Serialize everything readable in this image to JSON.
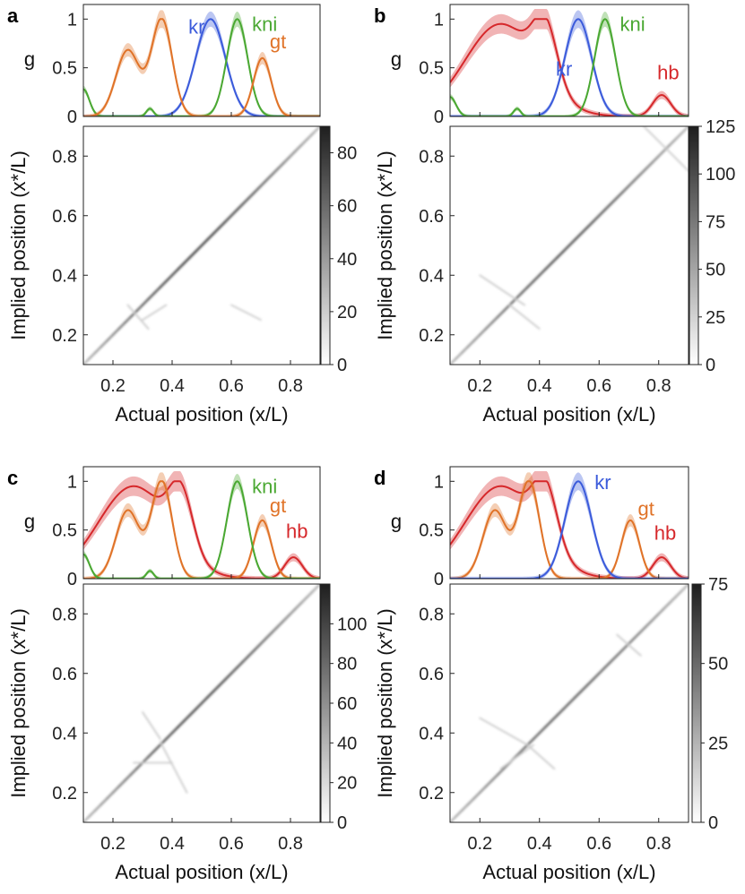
{
  "figure": {
    "colors": {
      "kr": "#3b5bdb",
      "kni": "#4aa832",
      "gt": "#e07328",
      "hb": "#d6282b"
    },
    "x_range": [
      0.1,
      0.9
    ]
  },
  "chart_data": [
    {
      "panel_label": "a",
      "genes": [
        {
          "name": "kr",
          "color": "#3b5bdb",
          "centers": [
            0.53
          ],
          "widths": [
            0.05
          ],
          "amps": [
            1.0
          ],
          "band": 0.06,
          "label_x": 0.455,
          "label_y": 0.85
        },
        {
          "name": "kni",
          "color": "#4aa832",
          "centers": [
            0.62,
            0.325,
            0.1
          ],
          "widths": [
            0.035,
            0.012,
            0.02
          ],
          "amps": [
            1.0,
            0.08,
            0.28
          ],
          "band": 0.06,
          "label_x": 0.67,
          "label_y": 0.88
        },
        {
          "name": "gt",
          "color": "#e07328",
          "centers": [
            0.25,
            0.365,
            0.705
          ],
          "widths": [
            0.04,
            0.035,
            0.03
          ],
          "amps": [
            0.68,
            1.0,
            0.6
          ],
          "band": 0.07,
          "label_x": 0.73,
          "label_y": 0.7
        }
      ],
      "top_plot": {
        "type": "line",
        "ylabel": "g",
        "yticks": [
          "0",
          "0.5",
          "1"
        ],
        "ylim": [
          0,
          1.15
        ],
        "xlim": [
          0.1,
          0.9
        ]
      },
      "heatmap": {
        "type": "heatmap",
        "xlabel": "Actual position (x/L)",
        "ylabel": "Implied position (x*/L)",
        "xticks": [
          "0.2",
          "0.4",
          "0.6",
          "0.8"
        ],
        "yticks": [
          "0.2",
          "0.4",
          "0.6",
          "0.8"
        ],
        "xlim": [
          0.1,
          0.9
        ],
        "ylim": [
          0.1,
          0.9
        ],
        "colorbar_max": 90,
        "colorbar_ticks": [
          "0",
          "20",
          "40",
          "60",
          "80"
        ],
        "peak": 80,
        "branches": [
          [
            0.25,
            0.3,
            0.32,
            0.22
          ],
          [
            0.3,
            0.25,
            0.38,
            0.3
          ],
          [
            0.6,
            0.3,
            0.7,
            0.25
          ]
        ]
      }
    },
    {
      "panel_label": "b",
      "genes": [
        {
          "name": "hb",
          "color": "#d6282b",
          "centers": [
            0.27,
            0.42,
            0.81
          ],
          "widths": [
            0.12,
            0.04,
            0.03
          ],
          "amps": [
            0.95,
            0.6,
            0.22
          ],
          "band": 0.08,
          "label_x": 0.795,
          "label_y": 0.38
        },
        {
          "name": "kr",
          "color": "#3b5bdb",
          "centers": [
            0.53
          ],
          "widths": [
            0.045
          ],
          "amps": [
            1.0
          ],
          "band": 0.07,
          "label_x": 0.455,
          "label_y": 0.42
        },
        {
          "name": "kni",
          "color": "#4aa832",
          "centers": [
            0.62,
            0.325,
            0.1
          ],
          "widths": [
            0.035,
            0.012,
            0.02
          ],
          "amps": [
            1.0,
            0.08,
            0.2
          ],
          "band": 0.06,
          "label_x": 0.67,
          "label_y": 0.88
        }
      ],
      "top_plot": {
        "type": "line",
        "ylabel": "g",
        "yticks": [
          "0",
          "0.5",
          "1"
        ],
        "ylim": [
          0,
          1.15
        ],
        "xlim": [
          0.1,
          0.9
        ]
      },
      "heatmap": {
        "type": "heatmap",
        "xlabel": "Actual position (x/L)",
        "ylabel": "Implied position (x*/L)",
        "xticks": [
          "0.2",
          "0.4",
          "0.6",
          "0.8"
        ],
        "yticks": [
          "0.2",
          "0.4",
          "0.6",
          "0.8"
        ],
        "xlim": [
          0.1,
          0.9
        ],
        "ylim": [
          0.1,
          0.9
        ],
        "colorbar_max": 125,
        "colorbar_ticks": [
          "0",
          "25",
          "50",
          "75",
          "100",
          "125"
        ],
        "peak": 70,
        "branches": [
          [
            0.2,
            0.4,
            0.35,
            0.3
          ],
          [
            0.3,
            0.3,
            0.4,
            0.22
          ],
          [
            0.75,
            0.9,
            0.9,
            0.75
          ]
        ]
      }
    },
    {
      "panel_label": "c",
      "genes": [
        {
          "name": "hb",
          "color": "#d6282b",
          "centers": [
            0.27,
            0.43,
            0.81
          ],
          "widths": [
            0.12,
            0.04,
            0.03
          ],
          "amps": [
            0.95,
            0.6,
            0.22
          ],
          "band": 0.08,
          "label_x": 0.785,
          "label_y": 0.42
        },
        {
          "name": "gt",
          "color": "#e07328",
          "centers": [
            0.25,
            0.365,
            0.705
          ],
          "widths": [
            0.04,
            0.035,
            0.03
          ],
          "amps": [
            0.7,
            1.0,
            0.6
          ],
          "band": 0.07,
          "label_x": 0.73,
          "label_y": 0.68
        },
        {
          "name": "kni",
          "color": "#4aa832",
          "centers": [
            0.62,
            0.325,
            0.1
          ],
          "widths": [
            0.035,
            0.012,
            0.02
          ],
          "amps": [
            1.0,
            0.08,
            0.25
          ],
          "band": 0.06,
          "label_x": 0.67,
          "label_y": 0.88
        }
      ],
      "top_plot": {
        "type": "line",
        "ylabel": "g",
        "yticks": [
          "0",
          "0.5",
          "1"
        ],
        "ylim": [
          0,
          1.15
        ],
        "xlim": [
          0.1,
          0.9
        ]
      },
      "heatmap": {
        "type": "heatmap",
        "xlabel": "Actual position (x/L)",
        "ylabel": "Implied position (x*/L)",
        "xticks": [
          "0.2",
          "0.4",
          "0.6",
          "0.8"
        ],
        "yticks": [
          "0.2",
          "0.4",
          "0.6",
          "0.8"
        ],
        "xlim": [
          0.1,
          0.9
        ],
        "ylim": [
          0.1,
          0.9
        ],
        "colorbar_max": 120,
        "colorbar_ticks": [
          "0",
          "20",
          "40",
          "60",
          "80",
          "100"
        ],
        "peak": 75,
        "branches": [
          [
            0.3,
            0.47,
            0.36,
            0.38
          ],
          [
            0.36,
            0.37,
            0.45,
            0.2
          ],
          [
            0.27,
            0.3,
            0.4,
            0.3
          ]
        ]
      }
    },
    {
      "panel_label": "d",
      "genes": [
        {
          "name": "hb",
          "color": "#d6282b",
          "centers": [
            0.27,
            0.42,
            0.81
          ],
          "widths": [
            0.12,
            0.04,
            0.03
          ],
          "amps": [
            0.95,
            0.6,
            0.22
          ],
          "band": 0.08,
          "label_x": 0.785,
          "label_y": 0.4
        },
        {
          "name": "gt",
          "color": "#e07328",
          "centers": [
            0.25,
            0.365,
            0.705
          ],
          "widths": [
            0.04,
            0.035,
            0.03
          ],
          "amps": [
            0.7,
            1.0,
            0.6
          ],
          "band": 0.07,
          "label_x": 0.73,
          "label_y": 0.65
        },
        {
          "name": "kr",
          "color": "#3b5bdb",
          "centers": [
            0.53
          ],
          "widths": [
            0.045
          ],
          "amps": [
            1.0
          ],
          "band": 0.07,
          "label_x": 0.585,
          "label_y": 0.92
        }
      ],
      "top_plot": {
        "type": "line",
        "ylabel": "g",
        "yticks": [
          "0",
          "0.5",
          "1"
        ],
        "ylim": [
          0,
          1.15
        ],
        "xlim": [
          0.1,
          0.9
        ]
      },
      "heatmap": {
        "type": "heatmap",
        "xlabel": "Actual position (x/L)",
        "ylabel": "Implied position (x*/L)",
        "xticks": [
          "0.2",
          "0.4",
          "0.6",
          "0.8"
        ],
        "yticks": [
          "0.2",
          "0.4",
          "0.6",
          "0.8"
        ],
        "xlim": [
          0.1,
          0.9
        ],
        "ylim": [
          0.1,
          0.9
        ],
        "colorbar_max": 75,
        "colorbar_ticks": [
          "0",
          "25",
          "50",
          "75"
        ],
        "peak": 60,
        "branches": [
          [
            0.2,
            0.45,
            0.36,
            0.36
          ],
          [
            0.36,
            0.36,
            0.45,
            0.28
          ],
          [
            0.27,
            0.28,
            0.38,
            0.36
          ],
          [
            0.66,
            0.73,
            0.74,
            0.66
          ]
        ]
      }
    }
  ]
}
